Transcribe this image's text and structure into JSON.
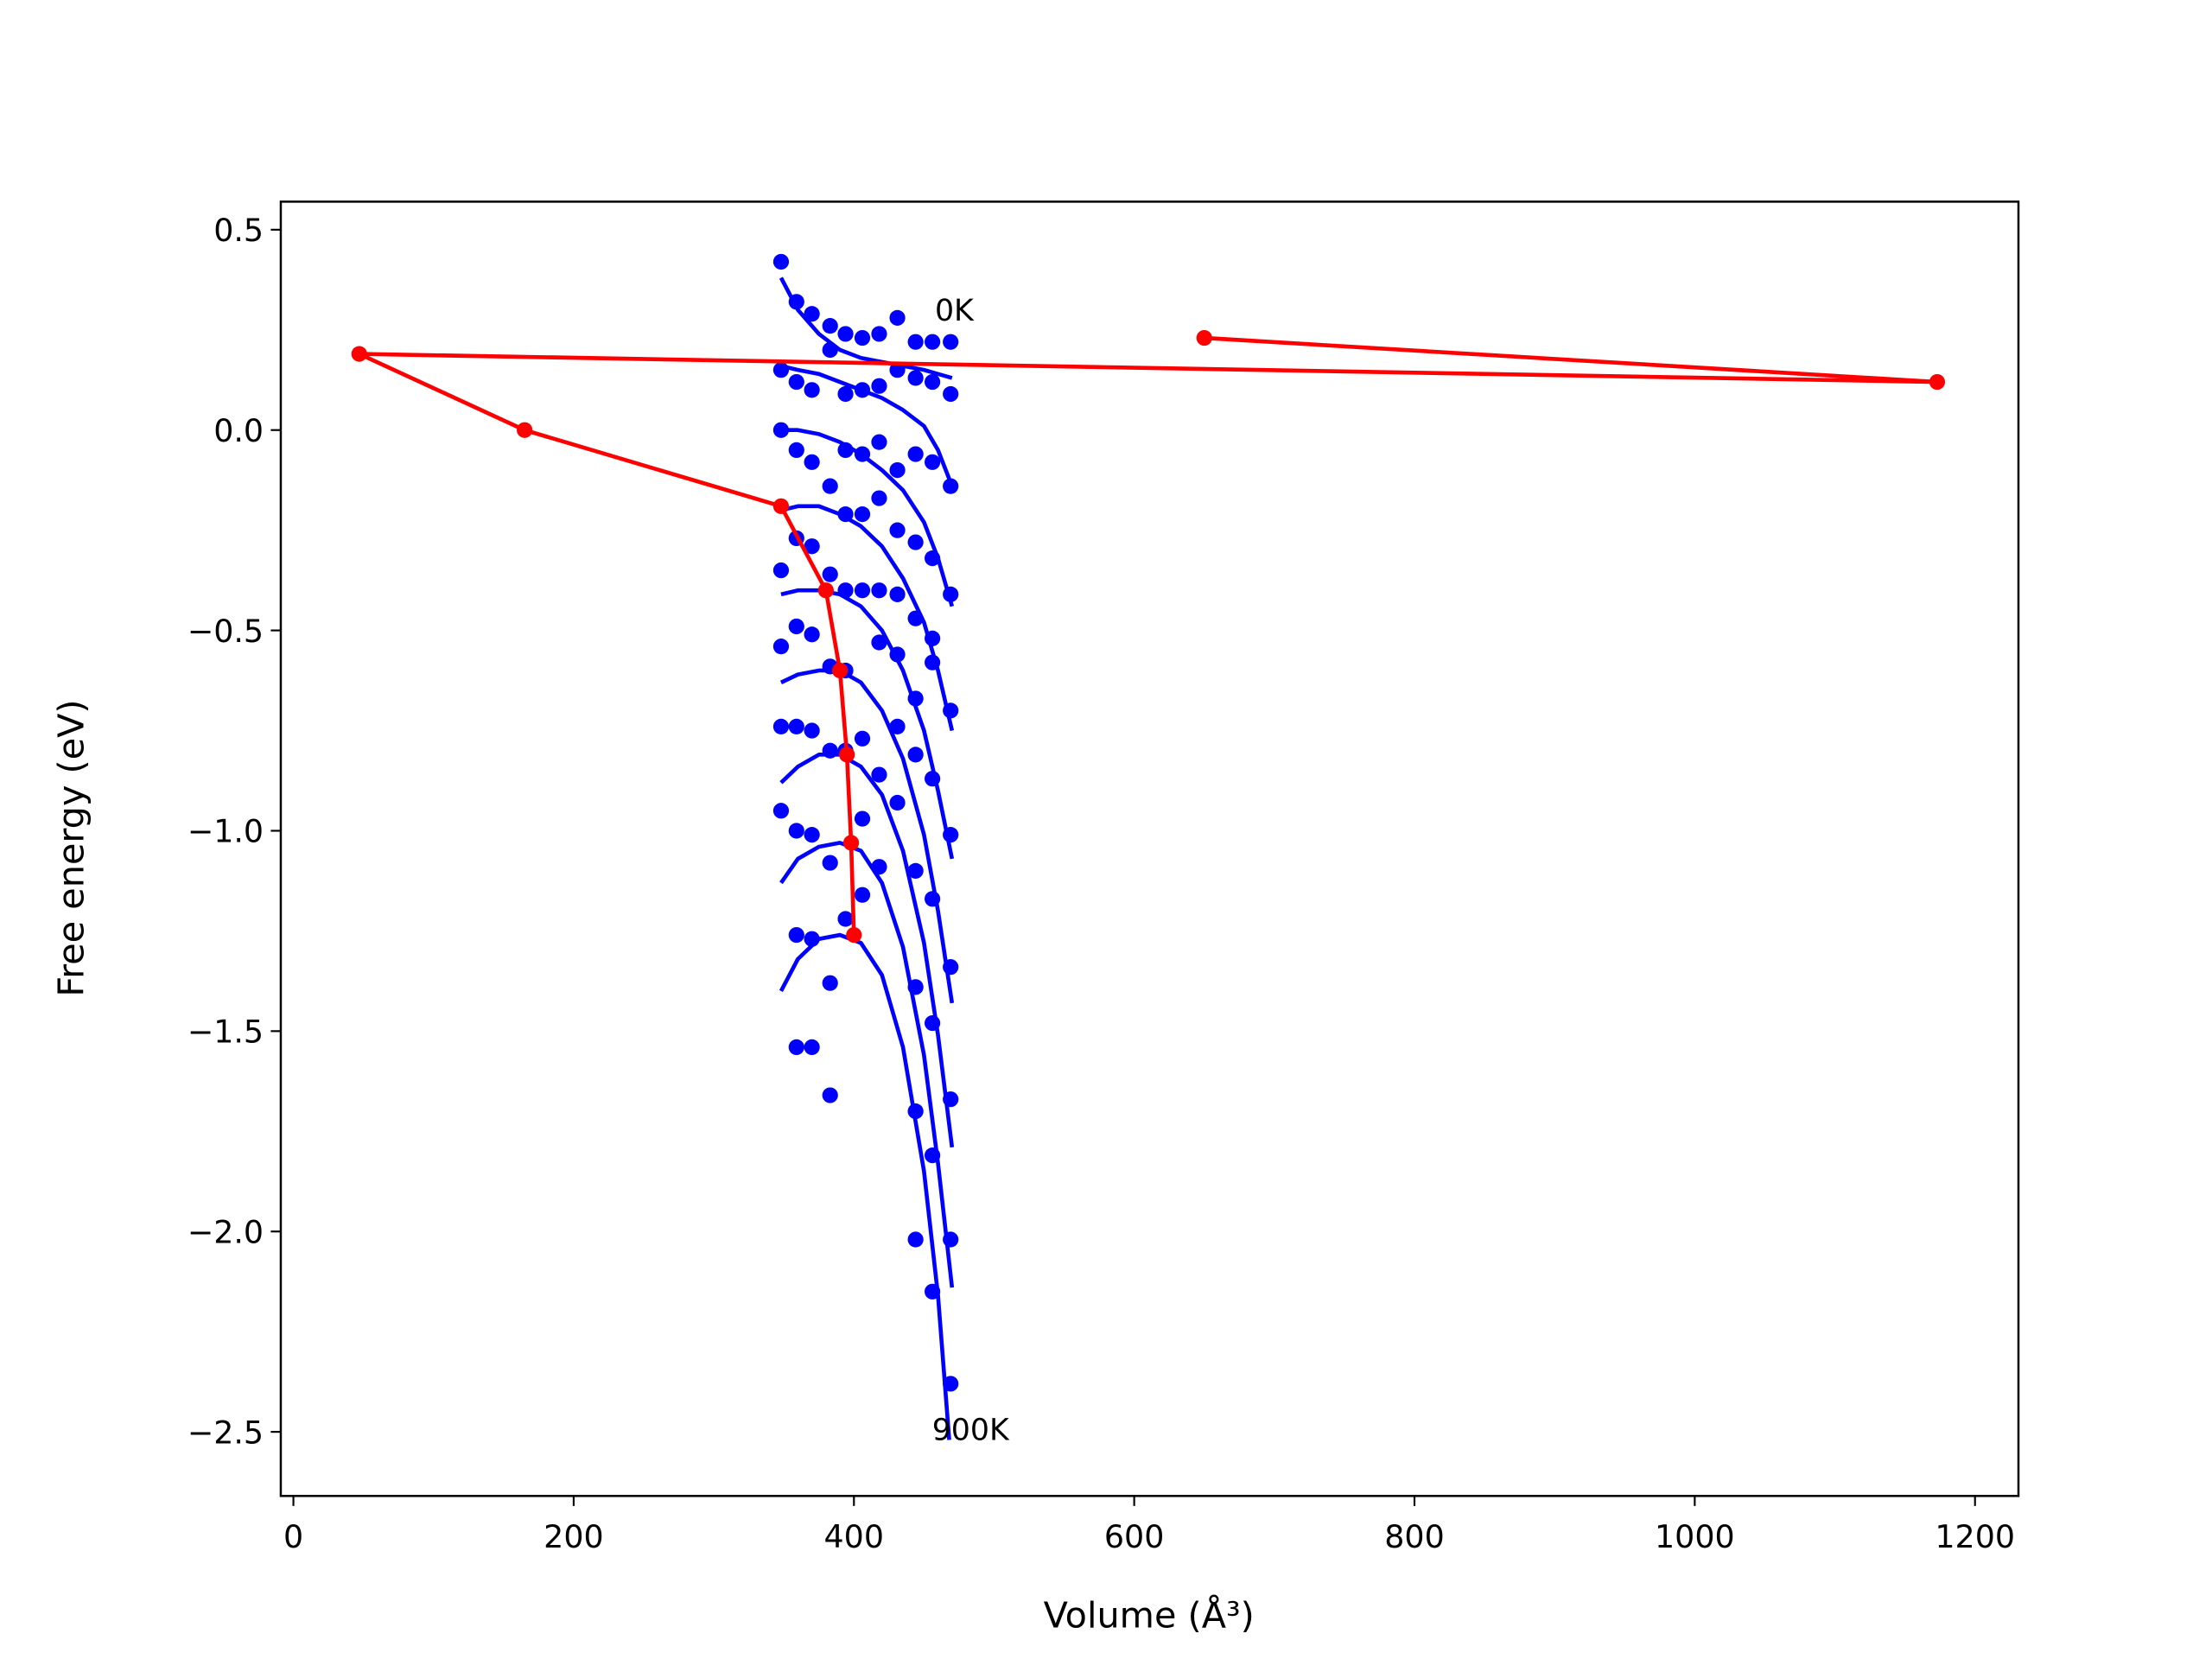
{
  "chart_data": {
    "type": "scatter",
    "x_label": "Volume (Å³)",
    "y_label": "Free energy (eV)",
    "annotations": [
      "0K",
      "900K"
    ],
    "xlim": [
      -9,
      1231
    ],
    "ylim": [
      -2.66,
      0.57
    ],
    "xticks": [
      0,
      200,
      400,
      600,
      800,
      1000,
      1200
    ],
    "yticks": [
      0.5,
      {
        "value": 0,
        "label": "0.0"
      },
      {
        "value": -0.5,
        "label": "−0.5"
      },
      {
        "value": -1,
        "label": "−1.0"
      },
      {
        "value": -1.5,
        "label": "−1.5"
      },
      {
        "value": -2,
        "label": "−2.0"
      },
      {
        "value": -2.5,
        "label": "−2.5"
      }
    ],
    "series": [
      {
        "type": "scatter",
        "color": "#0000ff",
        "x": [
          348,
          359,
          370,
          383,
          394,
          406,
          418,
          431,
          444,
          456,
          469
        ],
        "values": [
          0.42,
          0.32,
          0.29,
          0.26,
          0.24,
          0.23,
          0.24,
          0.28,
          0.22,
          0.22,
          0.22
        ]
      },
      {
        "type": "scatter",
        "color": "#0000ff",
        "x": [
          348,
          359,
          370,
          383,
          394,
          406,
          418,
          431,
          444,
          456,
          469
        ],
        "values": [
          0.15,
          0.12,
          0.1,
          0.2,
          0.09,
          0.1,
          0.11,
          0.15,
          0.13,
          0.12,
          0.09
        ]
      },
      {
        "type": "scatter",
        "color": "#0000ff",
        "x": [
          348,
          359,
          370,
          383,
          394,
          406,
          418,
          431,
          444,
          456,
          469
        ],
        "values": [
          0.0,
          -0.05,
          -0.08,
          -0.14,
          -0.05,
          -0.06,
          -0.03,
          -0.1,
          -0.06,
          -0.08,
          -0.14
        ]
      },
      {
        "type": "scatter",
        "color": "#0000ff",
        "x": [
          348,
          359,
          370,
          383,
          394,
          406,
          418,
          431,
          444,
          456,
          469
        ],
        "values": [
          -0.35,
          -0.27,
          -0.29,
          -0.36,
          -0.21,
          -0.21,
          -0.17,
          -0.25,
          -0.28,
          -0.32,
          -0.41
        ]
      },
      {
        "type": "scatter",
        "color": "#0000ff",
        "x": [
          348,
          359,
          370,
          383,
          394,
          406,
          418,
          431,
          444,
          456,
          469
        ],
        "values": [
          -0.54,
          -0.49,
          -0.51,
          -0.59,
          -0.4,
          -0.4,
          -0.4,
          -0.41,
          -0.47,
          -0.52,
          -0.7
        ]
      },
      {
        "type": "scatter",
        "color": "#0000ff",
        "x": [
          348,
          359,
          370,
          383,
          394,
          406,
          418,
          431,
          444,
          456,
          469
        ],
        "values": [
          -0.74,
          -0.74,
          -0.75,
          -0.8,
          -0.6,
          -0.77,
          -0.53,
          -0.56,
          -0.67,
          -0.58,
          -1.01
        ]
      },
      {
        "type": "scatter",
        "color": "#0000ff",
        "x": [
          348,
          359,
          370,
          383,
          394,
          406,
          418,
          431,
          444,
          456,
          469
        ],
        "values": [
          -0.95,
          -1.0,
          -1.01,
          -1.08,
          -0.8,
          -0.97,
          -0.86,
          -0.74,
          -0.81,
          -0.87,
          -1.34
        ]
      },
      {
        "type": "scatter",
        "color": "#0000ff",
        "x": [
          359,
          370,
          383,
          394,
          406,
          418,
          431,
          444,
          456,
          469
        ],
        "values": [
          -1.26,
          -1.27,
          -1.38,
          -1.22,
          -1.16,
          -1.09,
          -0.93,
          -1.1,
          -1.17,
          -1.67
        ]
      },
      {
        "type": "scatter",
        "color": "#0000ff",
        "x": [
          359,
          370,
          383,
          444,
          456,
          469
        ],
        "values": [
          -1.54,
          -1.54,
          -1.66,
          -1.39,
          -1.48,
          -2.02
        ]
      },
      {
        "type": "scatter",
        "color": "#0000ff",
        "x": [
          444,
          456,
          469
        ],
        "values": [
          -1.7,
          -1.81,
          -2.38
        ]
      },
      {
        "type": "scatter",
        "color": "#0000ff",
        "x": [
          444,
          456
        ],
        "values": [
          -2.02,
          -2.15
        ]
      },
      {
        "type": "line",
        "color": "#0000ff",
        "x": [
          348,
          360,
          375,
          390,
          405,
          420,
          435,
          450,
          460,
          470
        ],
        "values": [
          0.38,
          0.3,
          0.24,
          0.2,
          0.18,
          0.17,
          0.16,
          0.15,
          0.14,
          0.13
        ]
      },
      {
        "type": "line",
        "color": "#0000ff",
        "x": [
          348,
          360,
          375,
          390,
          405,
          420,
          435,
          450,
          460,
          470
        ],
        "values": [
          0.16,
          0.15,
          0.14,
          0.12,
          0.1,
          0.08,
          0.05,
          0.01,
          -0.05,
          -0.14
        ]
      },
      {
        "type": "line",
        "color": "#0000ff",
        "x": [
          348,
          360,
          375,
          390,
          405,
          420,
          435,
          450,
          460,
          470
        ],
        "values": [
          0.0,
          0.0,
          -0.01,
          -0.03,
          -0.06,
          -0.1,
          -0.15,
          -0.23,
          -0.32,
          -0.44
        ]
      },
      {
        "type": "line",
        "color": "#0000ff",
        "x": [
          348,
          360,
          375,
          390,
          405,
          420,
          435,
          450,
          460,
          470
        ],
        "values": [
          -0.2,
          -0.19,
          -0.19,
          -0.21,
          -0.24,
          -0.29,
          -0.37,
          -0.48,
          -0.6,
          -0.75
        ]
      },
      {
        "type": "line",
        "color": "#0000ff",
        "x": [
          348,
          360,
          375,
          390,
          405,
          420,
          435,
          450,
          460,
          470
        ],
        "values": [
          -0.41,
          -0.4,
          -0.4,
          -0.41,
          -0.44,
          -0.5,
          -0.6,
          -0.75,
          -0.9,
          -1.07
        ]
      },
      {
        "type": "line",
        "color": "#0000ff",
        "x": [
          348,
          360,
          375,
          390,
          405,
          420,
          435,
          450,
          460,
          470
        ],
        "values": [
          -0.63,
          -0.61,
          -0.6,
          -0.6,
          -0.63,
          -0.7,
          -0.82,
          -1.01,
          -1.2,
          -1.43
        ]
      },
      {
        "type": "line",
        "color": "#0000ff",
        "x": [
          348,
          360,
          375,
          390,
          405,
          420,
          435,
          450,
          460,
          470
        ],
        "values": [
          -0.88,
          -0.84,
          -0.81,
          -0.81,
          -0.84,
          -0.91,
          -1.05,
          -1.28,
          -1.51,
          -1.79
        ]
      },
      {
        "type": "line",
        "color": "#0000ff",
        "x": [
          348,
          360,
          375,
          390,
          405,
          420,
          435,
          450,
          460,
          470
        ],
        "values": [
          -1.13,
          -1.07,
          -1.04,
          -1.03,
          -1.05,
          -1.13,
          -1.29,
          -1.56,
          -1.83,
          -2.14
        ]
      },
      {
        "type": "line",
        "color": "#0000ff",
        "x": [
          348,
          360,
          375,
          390,
          405,
          420,
          435,
          450,
          460,
          468
        ],
        "values": [
          -1.4,
          -1.32,
          -1.27,
          -1.26,
          -1.28,
          -1.36,
          -1.54,
          -1.85,
          -2.16,
          -2.52
        ]
      },
      {
        "type": "line",
        "marker": true,
        "color": "#ff0000",
        "x": [
          650,
          1173,
          47,
          165,
          348,
          380,
          390,
          395,
          398,
          400
        ],
        "values": [
          0.23,
          0.12,
          0.19,
          0.0,
          -0.19,
          -0.4,
          -0.6,
          -0.81,
          -1.03,
          -1.26
        ]
      }
    ]
  }
}
